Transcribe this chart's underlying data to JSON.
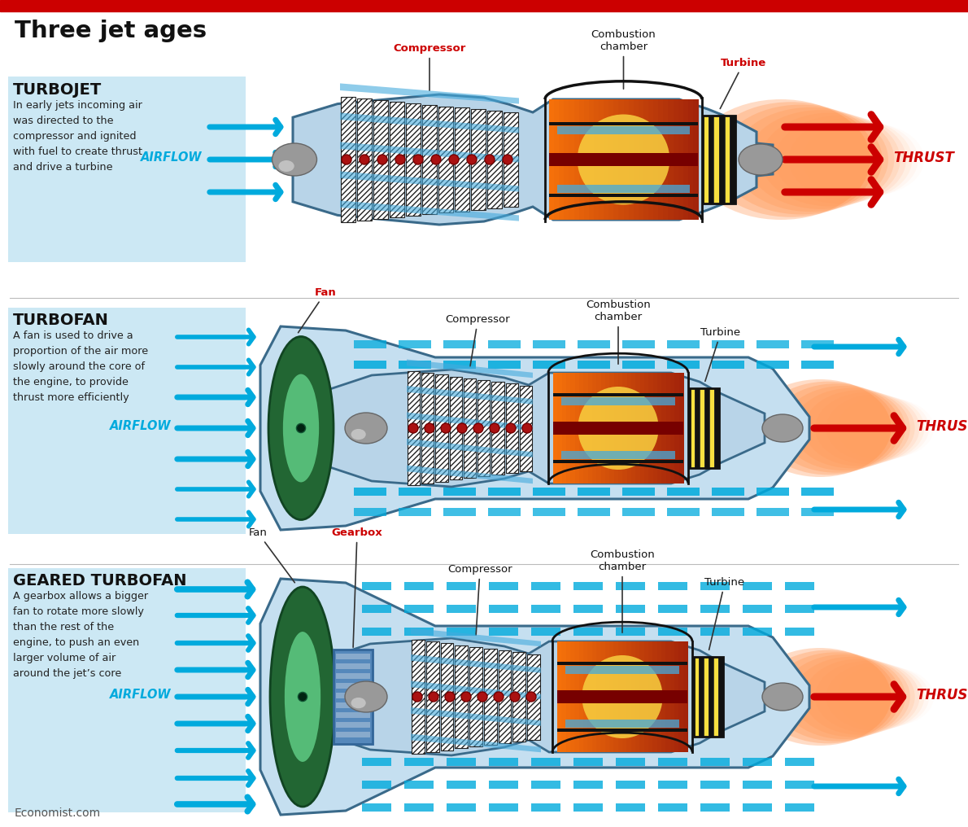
{
  "title": "Three jet ages",
  "bg_color": "#ffffff",
  "red_bar": "#cc0000",
  "panel_color": "#cce8f4",
  "airflow_color": "#00aadd",
  "thrust_color": "#cc0000",
  "body_fill": "#b8d4e8",
  "body_stroke": "#3a6a8a",
  "bypass_fill": "#c0daf0",
  "comb_orange": "#f07828",
  "comb_yellow": "#f8d040",
  "comb_red_center": "#880000",
  "turbine_yellow": "#f8e040",
  "turbine_black": "#111111",
  "fan_green_dark": "#226633",
  "fan_green_mid": "#338844",
  "fan_green_light": "#55bb77",
  "silver": "#aaaaaa",
  "silver_light": "#cccccc",
  "gearbox_blue": "#5588bb",
  "gearbox_blue_dark": "#336699",
  "gearbox_stripe": "#88aacc",
  "label_red": "#cc0000",
  "label_black": "#111111",
  "section1_title": "TURBOJET",
  "section1_text": "In early jets incoming air\nwas directed to the\ncompressor and ignited\nwith fuel to create thrust\nand drive a turbine",
  "section2_title": "TURBOFAN",
  "section2_text": "A fan is used to drive a\nproportion of the air more\nslowly around the core of\nthe engine, to provide\nthrust more efficiently",
  "section3_title": "GEARED TURBOFAN",
  "section3_text": "A gearbox allows a bigger\nfan to rotate more slowly\nthan the rest of the\nengine, to push an even\nlarger volume of air\naround the jet’s core",
  "footer": "Economist.com"
}
